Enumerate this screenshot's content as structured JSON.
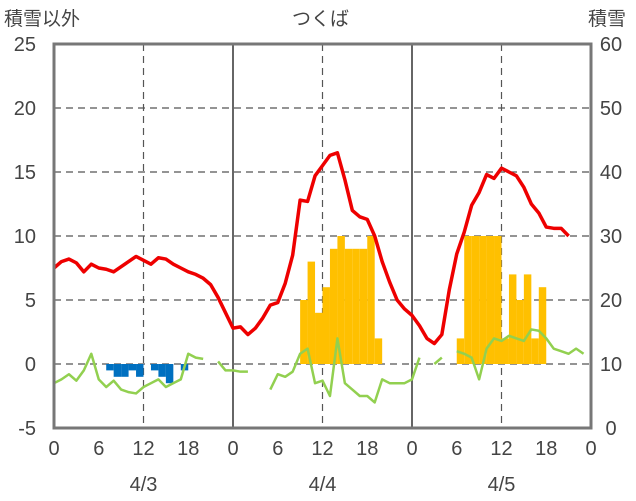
{
  "chart_data": {
    "type": "bar+line",
    "title": "つくば",
    "left_axis_label": "積雪以外",
    "right_axis_label": "積雪",
    "left_ylim": [
      -5,
      25
    ],
    "left_yticks": [
      "25",
      "20",
      "15",
      "10",
      "5",
      "0",
      "-5"
    ],
    "right_ylim": [
      0,
      60
    ],
    "right_yticks": [
      "60",
      "50",
      "40",
      "30",
      "20",
      "10",
      "0"
    ],
    "hour_tick_labels": [
      "0",
      "6",
      "12",
      "18",
      "0",
      "6",
      "12",
      "18",
      "0",
      "6",
      "12",
      "18",
      "0"
    ],
    "day_labels": [
      "4/3",
      "4/4",
      "4/5"
    ],
    "grid": true,
    "colors": {
      "temperature": "#ee0000",
      "precip_bar": "#ffc000",
      "green_line": "#92d050",
      "blue_bar": "#0070c0",
      "snow_line": "#7030a0"
    },
    "temperature": [
      7.5,
      8,
      8.2,
      7.9,
      7.2,
      7.8,
      7.5,
      7.4,
      7.2,
      7.6,
      8,
      8.4,
      8.1,
      7.8,
      8.3,
      8.2,
      7.8,
      7.5,
      7.2,
      7,
      6.7,
      6.2,
      5.2,
      4,
      2.8,
      2.9,
      2.3,
      2.8,
      3.6,
      4.6,
      4.8,
      6.3,
      8.5,
      12.8,
      12.7,
      14.7,
      15.5,
      16.3,
      16.5,
      14.4,
      12,
      11.5,
      11.3,
      10,
      8,
      6.4,
      5,
      4.3,
      3.8,
      3,
      2,
      1.6,
      2.3,
      5.8,
      8.6,
      10.3,
      12.4,
      13.4,
      14.8,
      14.5,
      15.3,
      15,
      14.7,
      13.8,
      12.5,
      11.8,
      10.7,
      10.6,
      10.6,
      10
    ],
    "precip_bars": [
      {
        "hour": 33,
        "value": 5
      },
      {
        "hour": 34,
        "value": 8
      },
      {
        "hour": 35,
        "value": 4
      },
      {
        "hour": 36,
        "value": 6
      },
      {
        "hour": 37,
        "value": 9
      },
      {
        "hour": 38,
        "value": 10
      },
      {
        "hour": 39,
        "value": 9
      },
      {
        "hour": 40,
        "value": 9
      },
      {
        "hour": 41,
        "value": 9
      },
      {
        "hour": 42,
        "value": 10
      },
      {
        "hour": 43,
        "value": 2
      },
      {
        "hour": 54,
        "value": 2
      },
      {
        "hour": 55,
        "value": 10
      },
      {
        "hour": 56,
        "value": 10
      },
      {
        "hour": 57,
        "value": 10
      },
      {
        "hour": 58,
        "value": 10
      },
      {
        "hour": 59,
        "value": 10
      },
      {
        "hour": 60,
        "value": 2
      },
      {
        "hour": 61,
        "value": 7
      },
      {
        "hour": 62,
        "value": 5
      },
      {
        "hour": 63,
        "value": 7
      },
      {
        "hour": 64,
        "value": 2
      },
      {
        "hour": 65,
        "value": 6
      }
    ],
    "blue_bars": [
      {
        "hour": 7,
        "value": -0.5
      },
      {
        "hour": 8,
        "value": -1
      },
      {
        "hour": 9,
        "value": -1
      },
      {
        "hour": 10,
        "value": -0.5
      },
      {
        "hour": 11,
        "value": -1
      },
      {
        "hour": 13,
        "value": -0.5
      },
      {
        "hour": 14,
        "value": -1
      },
      {
        "hour": 15,
        "value": -1.5
      },
      {
        "hour": 17,
        "value": -0.5
      }
    ],
    "green_line": [
      -1.5,
      -1.2,
      -0.8,
      -1.3,
      -0.5,
      0.8,
      -1.2,
      -1.8,
      -1.3,
      -2,
      -2.2,
      -2.3,
      -1.8,
      -1.5,
      -1.2,
      -1.8,
      -1.5,
      -1.2,
      0.8,
      0.5,
      0.4,
      null,
      0.2,
      -0.5,
      -0.5,
      -0.6,
      -0.6,
      null,
      null,
      -2,
      -0.8,
      -1,
      -0.6,
      0.8,
      1.2,
      -1.5,
      -1.3,
      -2.5,
      2,
      -1.5,
      -2,
      -2.5,
      -2.5,
      -3,
      -1.2,
      -1.5,
      -1.5,
      -1.5,
      -1.2,
      0.5,
      null,
      0,
      0.5,
      null,
      1,
      0.8,
      0.5,
      -1.2,
      1.2,
      2,
      1.8,
      2.2,
      2,
      1.8,
      2.7,
      2.6,
      2,
      1.2,
      1,
      0.8,
      1.2,
      0.8
    ],
    "snow_line_value": 0
  }
}
